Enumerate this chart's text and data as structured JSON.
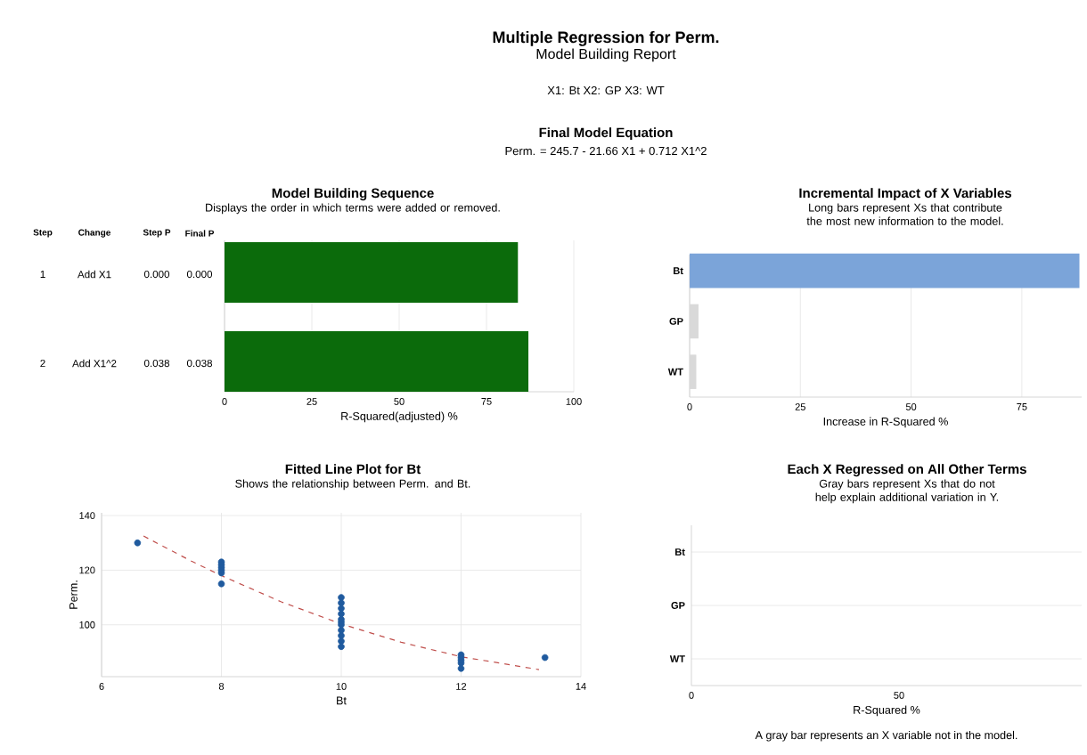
{
  "chart_data": [
    {
      "type": "other",
      "title": "Multiple Regression for Perm.",
      "subtitle": "Model Building Report",
      "annotations": [
        "X1: Bt   X2: GP   X3: WT",
        "Final Model Equation",
        "Perm.  =  245.7 - 21.66 X1 + 0.712 X1^2"
      ]
    },
    {
      "type": "bar",
      "orientation": "horizontal",
      "title": "Model Building Sequence",
      "subtitle": "Displays the order in which terms were added or removed.",
      "categories": [
        null,
        null
      ],
      "values": [
        84,
        87
      ],
      "color": "#0b6b0b",
      "xlim": [
        0,
        100
      ],
      "xticks": [
        0,
        25,
        50,
        75,
        100
      ],
      "xlabel": "R-Squared(adjusted) %",
      "grid": "x",
      "annotations": [
        "Step",
        "Change",
        "Step P",
        "Final P",
        "1",
        "Add X1",
        "0.000",
        "0.000",
        "2",
        "Add X1^2",
        "0.038",
        "0.038"
      ]
    },
    {
      "type": "bar",
      "orientation": "horizontal",
      "title": "Incremental Impact of X Variables",
      "subtitle": "Long bars represent Xs that contribute the most new information to the model.",
      "categories": [
        "Bt",
        "GP",
        "WT"
      ],
      "values": [
        88,
        2,
        1.5
      ],
      "colors": [
        "#7ba4d9",
        "#d9d9d9",
        "#d9d9d9"
      ],
      "xlim": [
        0,
        88.5
      ],
      "xticks": [
        0,
        25,
        50,
        75
      ],
      "xlabel": "Increase in R-Squared %",
      "grid": "x"
    },
    {
      "type": "scatter",
      "title": "Fitted Line Plot for Bt",
      "subtitle": "Shows the relationship between Perm. and Bt.",
      "xlabel": "Bt",
      "ylabel": "Perm.",
      "xlim": [
        6,
        14
      ],
      "ylim": [
        81,
        141
      ],
      "xticks": [
        6,
        8,
        10,
        12,
        14
      ],
      "yticks": [
        100,
        120,
        140
      ],
      "grid": true,
      "series": [
        {
          "type": "scatter",
          "marker": "circle",
          "color": "#1f5a9e",
          "x": [
            6.6,
            8,
            8,
            8,
            8,
            8,
            8,
            10,
            10,
            10,
            10,
            10,
            10,
            10,
            10,
            10,
            10,
            10,
            12,
            12,
            12,
            12,
            12,
            13.4
          ],
          "values": [
            130,
            115,
            119,
            120,
            121,
            122,
            123,
            92,
            94,
            96,
            98,
            100,
            101,
            102,
            104,
            106,
            108,
            110,
            84,
            86,
            87,
            88,
            89,
            88
          ]
        },
        {
          "type": "line",
          "marker": "none",
          "line_style": "dashed",
          "color": "#c0504d",
          "x": [
            6.7,
            7.5,
            8,
            9,
            10,
            11,
            12,
            13.3
          ],
          "values": [
            132.5,
            123.3,
            118,
            108.4,
            100.3,
            93.6,
            88.3,
            83.6
          ]
        }
      ]
    },
    {
      "type": "bar",
      "orientation": "horizontal",
      "title": "Each X Regressed on All Other Terms",
      "subtitle": "Gray bars represent Xs that do not help explain additional variation in Y.",
      "categories": [
        "Bt",
        "GP",
        "WT"
      ],
      "values": [
        null,
        null,
        null
      ],
      "xlim": [
        0,
        94
      ],
      "xticks": [
        0,
        50
      ],
      "xlabel": "R-Squared %",
      "grid": "y",
      "annotations": [
        "A gray bar represents an X variable not in the model."
      ]
    }
  ]
}
